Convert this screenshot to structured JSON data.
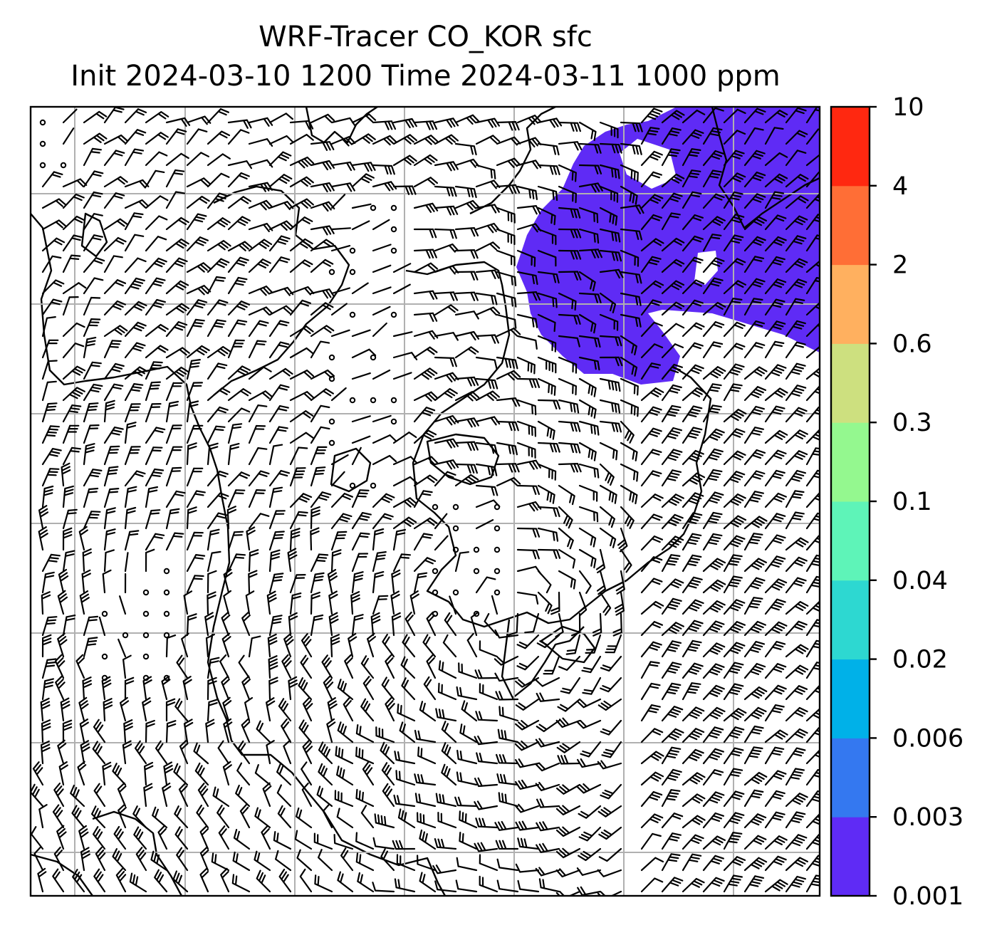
{
  "header": {
    "title_line1": "WRF-Tracer CO_KOR sfc",
    "title_line2": "Init 2024-03-10 1200 Time 2024-03-11 1000 ppm"
  },
  "map": {
    "field": "CO_KOR tracer concentration",
    "units": "ppm",
    "overlay": "surface wind barbs",
    "coastlines": true,
    "gridlines": true,
    "plume_color": "#5f2bf5",
    "plume_level": "0.001-0.003"
  },
  "colorbar": {
    "levels": [
      "0.001",
      "0.003",
      "0.006",
      "0.02",
      "0.04",
      "0.1",
      "0.3",
      "0.6",
      "2",
      "4",
      "10"
    ],
    "colors": [
      "#5f2bf5",
      "#3478f0",
      "#00b1e8",
      "#2dd8d1",
      "#5ef4b8",
      "#94f88f",
      "#cde07f",
      "#ffb05f",
      "#ff6e36",
      "#ff2810"
    ]
  }
}
